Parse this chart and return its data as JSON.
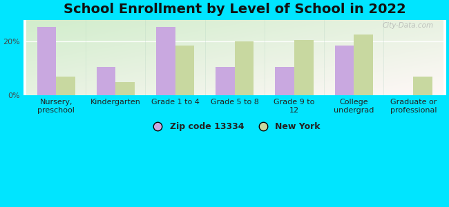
{
  "title": "School Enrollment by Level of School in 2022",
  "categories": [
    "Nursery,\npreschool",
    "Kindergarten",
    "Grade 1 to 4",
    "Grade 5 to 8",
    "Grade 9 to\n12",
    "College\nundergrad",
    "Graduate or\nprofessional"
  ],
  "zip_values": [
    25.5,
    10.5,
    25.5,
    10.5,
    10.5,
    18.5,
    0
  ],
  "ny_values": [
    7.0,
    5.0,
    18.5,
    20.0,
    20.5,
    22.5,
    7.0
  ],
  "zip_color": "#c9a8e0",
  "ny_color": "#c8d8a0",
  "background_outer": "#00e5ff",
  "ylabel_ticks": [
    "0%",
    "20%"
  ],
  "yticks": [
    0,
    20
  ],
  "ylim": [
    0,
    28
  ],
  "bar_width": 0.32,
  "legend_zip_label": "Zip code 13334",
  "legend_ny_label": "New York",
  "watermark": "City-Data.com",
  "title_fontsize": 14,
  "tick_fontsize": 8,
  "legend_fontsize": 9
}
